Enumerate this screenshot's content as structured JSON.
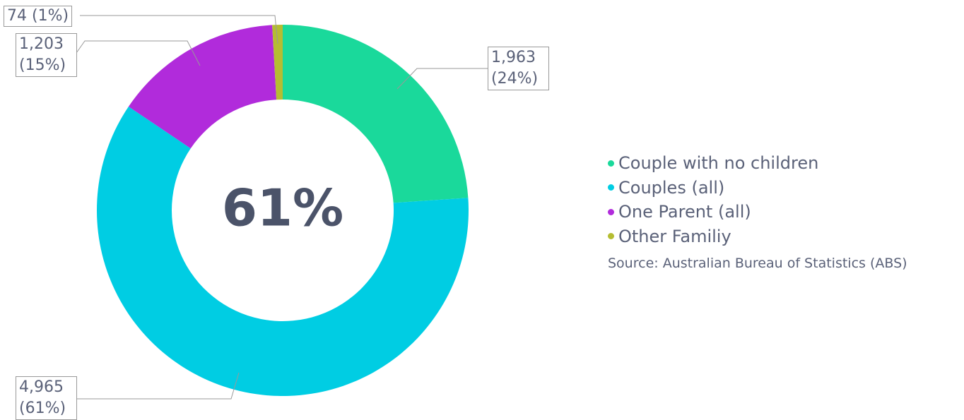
{
  "chart_data": {
    "type": "donut",
    "center_label": "61%",
    "categories": [
      "Couple with no children",
      "Couples (all)",
      "One Parent (all)",
      "Other Familiy"
    ],
    "values": [
      1963,
      4965,
      1203,
      74
    ],
    "value_labels": [
      "1,963 (24%)",
      "4,965 (61%)",
      "1,203 (15%)",
      "74 (1%)"
    ],
    "colors": [
      "#1ad99b",
      "#00cde3",
      "#b12bdb",
      "#b5bd32"
    ],
    "legend": "right",
    "source": "Source: Australian Bureau of Statistics (ABS)"
  }
}
